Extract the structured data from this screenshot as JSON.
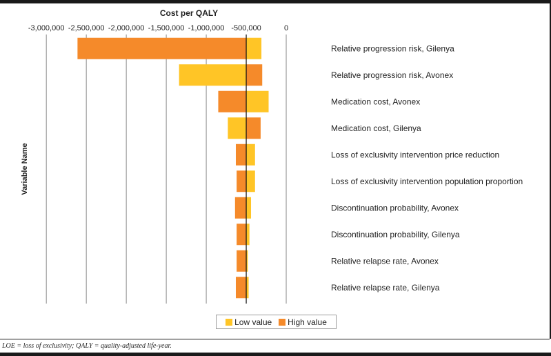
{
  "chart_data": {
    "type": "bar",
    "orientation": "horizontal",
    "subtype": "tornado",
    "title": "Cost per QALY",
    "xlabel": "Cost per QALY",
    "ylabel": "Variable Name",
    "xlim": [
      -3450000,
      500000
    ],
    "base_value": -500000,
    "x_ticks": [
      -3000000,
      -2500000,
      -2000000,
      -1500000,
      -1000000,
      -500000,
      0
    ],
    "x_tick_labels": [
      "-3,000,000",
      "-2,500,000",
      "-2,000,000",
      "-1,500,000",
      "-1,000,000",
      "-500,000",
      "0"
    ],
    "categories": [
      "Relative progression risk, Gilenya",
      "Relative progression risk, Avonex",
      "Medication cost, Avonex",
      "Medication cost, Gilenya",
      "Loss of exclusivity intervention price reduction",
      "Loss of exclusivity intervention population proportion",
      "Discontinuation probability, Avonex",
      "Discontinuation probability, Gilenya",
      "Relative relapse rate, Avonex",
      "Relative relapse rate, Gilenya"
    ],
    "series": [
      {
        "name": "Low value",
        "color": "#FFC526",
        "values": [
          -310000,
          -1340000,
          -220000,
          -730000,
          -390000,
          -390000,
          -440000,
          -460000,
          -480000,
          -470000
        ]
      },
      {
        "name": "High value",
        "color": "#F58A2A",
        "values": [
          -2610000,
          -300000,
          -850000,
          -320000,
          -630000,
          -620000,
          -640000,
          -620000,
          -620000,
          -630000
        ]
      }
    ],
    "grid": true,
    "legend_position": "bottom"
  },
  "footnote": "LOE = loss of exclusivity; QALY = quality-adjusted life-year."
}
